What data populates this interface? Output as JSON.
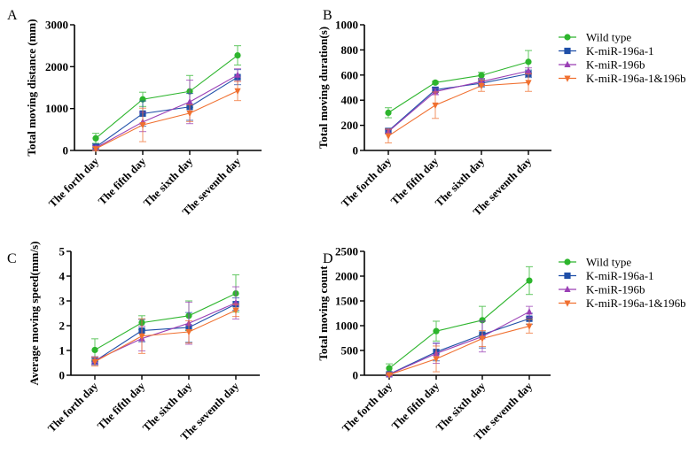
{
  "figure": {
    "legend_entries": [
      "Wild type",
      "K-miR-196a-1",
      "K-miR-196b",
      "K-miR-196a-1&196b"
    ]
  },
  "chart_data": [
    {
      "panel": "A",
      "type": "line",
      "title": "",
      "xlabel": "",
      "ylabel": "Total moving distance (mm)",
      "categories": [
        "The forth day",
        "The fifth day",
        "The sixth day",
        "The seventh day"
      ],
      "ylim": [
        0,
        3000
      ],
      "yticks": [
        0,
        1000,
        2000,
        3000
      ],
      "legend": "none",
      "series": [
        {
          "name": "Wild type",
          "color": "#2db52d",
          "marker": "circle",
          "values": [
            290,
            1220,
            1410,
            2270
          ],
          "errors": [
            120,
            170,
            380,
            230
          ]
        },
        {
          "name": "K-miR-196a-1",
          "color": "#1f4fa8",
          "marker": "square",
          "values": [
            80,
            880,
            1040,
            1750
          ],
          "errors": [
            80,
            300,
            320,
            180
          ]
        },
        {
          "name": "K-miR-196b",
          "color": "#9a3fb5",
          "marker": "triangle-up",
          "values": [
            60,
            680,
            1160,
            1800
          ],
          "errors": [
            60,
            230,
            520,
            150
          ]
        },
        {
          "name": "K-miR-196a-1&196b",
          "color": "#f07030",
          "marker": "triangle-down",
          "values": [
            40,
            610,
            890,
            1420
          ],
          "errors": [
            40,
            400,
            200,
            230
          ]
        }
      ]
    },
    {
      "panel": "B",
      "type": "line",
      "title": "",
      "xlabel": "",
      "ylabel": "Total moving duration(s)",
      "categories": [
        "The forth day",
        "The fifth day",
        "The sixth day",
        "The seventh day"
      ],
      "ylim": [
        0,
        1000
      ],
      "yticks": [
        0,
        200,
        400,
        600,
        800,
        1000
      ],
      "legend": "right",
      "series": [
        {
          "name": "Wild type",
          "color": "#2db52d",
          "marker": "circle",
          "values": [
            300,
            540,
            597,
            705
          ],
          "errors": [
            40,
            10,
            25,
            90
          ]
        },
        {
          "name": "K-miR-196a-1",
          "color": "#1f4fa8",
          "marker": "square",
          "values": [
            155,
            483,
            535,
            610
          ],
          "errors": [
            20,
            20,
            30,
            30
          ]
        },
        {
          "name": "K-miR-196b",
          "color": "#9a3fb5",
          "marker": "triangle-up",
          "values": [
            150,
            468,
            548,
            632
          ],
          "errors": [
            15,
            25,
            25,
            25
          ]
        },
        {
          "name": "K-miR-196a-1&196b",
          "color": "#f07030",
          "marker": "triangle-down",
          "values": [
            115,
            360,
            515,
            540
          ],
          "errors": [
            55,
            105,
            45,
            70
          ]
        }
      ]
    },
    {
      "panel": "C",
      "type": "line",
      "title": "",
      "xlabel": "",
      "ylabel": "Average moving speed(mm/s)",
      "categories": [
        "The forth day",
        "The fifth day",
        "The sixth day",
        "The seventh day"
      ],
      "ylim": [
        0,
        5
      ],
      "yticks": [
        0,
        1,
        2,
        3,
        4,
        5
      ],
      "legend": "none",
      "series": [
        {
          "name": "Wild type",
          "color": "#2db52d",
          "marker": "circle",
          "values": [
            1.02,
            2.12,
            2.4,
            3.3
          ],
          "errors": [
            0.45,
            0.28,
            0.6,
            0.75
          ]
        },
        {
          "name": "K-miR-196a-1",
          "color": "#1f4fa8",
          "marker": "square",
          "values": [
            0.57,
            1.8,
            1.93,
            2.87
          ],
          "errors": [
            0.15,
            0.45,
            0.6,
            0.25
          ]
        },
        {
          "name": "K-miR-196b",
          "color": "#9a3fb5",
          "marker": "triangle-up",
          "values": [
            0.6,
            1.48,
            2.1,
            2.92
          ],
          "errors": [
            0.15,
            0.5,
            0.85,
            0.65
          ]
        },
        {
          "name": "K-miR-196a-1&196b",
          "color": "#f07030",
          "marker": "triangle-down",
          "values": [
            0.55,
            1.58,
            1.75,
            2.62
          ],
          "errors": [
            0.18,
            0.7,
            0.45,
            0.25
          ]
        }
      ]
    },
    {
      "panel": "D",
      "type": "line",
      "title": "",
      "xlabel": "",
      "ylabel": "Total moving count",
      "categories": [
        "The forth day",
        "The fifth day",
        "The sixth day",
        "The seventh day"
      ],
      "ylim": [
        0,
        2500
      ],
      "yticks": [
        0,
        500,
        1000,
        1500,
        2000,
        2500
      ],
      "legend": "right",
      "series": [
        {
          "name": "Wild type",
          "color": "#2db52d",
          "marker": "circle",
          "values": [
            140,
            890,
            1110,
            1910
          ],
          "errors": [
            90,
            200,
            280,
            280
          ]
        },
        {
          "name": "K-miR-196a-1",
          "color": "#1f4fa8",
          "marker": "square",
          "values": [
            20,
            470,
            820,
            1140
          ],
          "errors": [
            20,
            180,
            270,
            110
          ]
        },
        {
          "name": "K-miR-196b",
          "color": "#9a3fb5",
          "marker": "triangle-up",
          "values": [
            15,
            440,
            780,
            1280
          ],
          "errors": [
            15,
            200,
            310,
            110
          ]
        },
        {
          "name": "K-miR-196a-1&196b",
          "color": "#f07030",
          "marker": "triangle-down",
          "values": [
            10,
            330,
            740,
            990
          ],
          "errors": [
            10,
            260,
            160,
            140
          ]
        }
      ]
    }
  ]
}
